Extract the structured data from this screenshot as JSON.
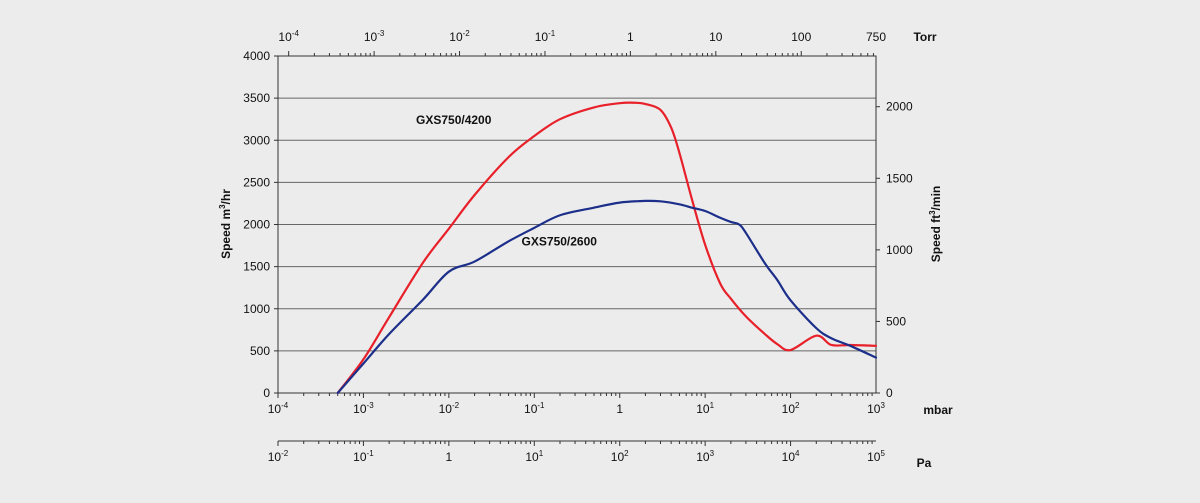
{
  "chart_data": {
    "type": "line",
    "title": "",
    "xscale": "log",
    "xlim": [
      0.0001,
      1000
    ],
    "ylim": [
      0,
      4000
    ],
    "y_ticks": [
      0,
      500,
      1000,
      1500,
      2000,
      2500,
      3000,
      3500,
      4000
    ],
    "y_tick_labels": [
      "0",
      "500",
      "1000",
      "1500",
      "2000",
      "2500",
      "3000",
      "3500",
      "4000"
    ],
    "ylabel": "Speed m",
    "ylabel_sup": "3",
    "ylabel_unit": "/hr",
    "y2_ticks": [
      0,
      500,
      1000,
      1500,
      2000
    ],
    "y2_tick_labels": [
      "0",
      "500",
      "1000",
      "1500",
      "2000"
    ],
    "y2_per_ft3min": 1.699,
    "y2label": "Speed ft",
    "y2label_sup": "3",
    "y2label_unit": "/min",
    "mbar_axis": {
      "unit": "mbar",
      "ticks": [
        {
          "base": "10",
          "exp": "-4"
        },
        {
          "base": "10",
          "exp": "-3"
        },
        {
          "base": "10",
          "exp": "-2"
        },
        {
          "base": "10",
          "exp": "-1"
        },
        {
          "base": "1",
          "exp": ""
        },
        {
          "base": "10",
          "exp": "1"
        },
        {
          "base": "10",
          "exp": "2"
        },
        {
          "base": "10",
          "exp": "3"
        }
      ]
    },
    "torr_axis": {
      "unit": "Torr",
      "ticks": [
        {
          "base": "10",
          "exp": "-4"
        },
        {
          "base": "10",
          "exp": "-3"
        },
        {
          "base": "10",
          "exp": "-2"
        },
        {
          "base": "10",
          "exp": "-1"
        },
        {
          "base": "1",
          "exp": ""
        },
        {
          "base": "10",
          "exp": ""
        },
        {
          "base": "100",
          "exp": ""
        },
        {
          "base": "750",
          "exp": ""
        }
      ],
      "torr_values": [
        0.0001,
        0.001,
        0.01,
        0.1,
        1,
        10,
        100,
        750
      ],
      "mbar_per_torr": 1.3332
    },
    "pa_axis": {
      "unit": "Pa",
      "ticks": [
        {
          "base": "10",
          "exp": "-2"
        },
        {
          "base": "10",
          "exp": "-1"
        },
        {
          "base": "1",
          "exp": ""
        },
        {
          "base": "10",
          "exp": "1"
        },
        {
          "base": "10",
          "exp": "2"
        },
        {
          "base": "10",
          "exp": "3"
        },
        {
          "base": "10",
          "exp": "4"
        },
        {
          "base": "10",
          "exp": "5"
        }
      ]
    },
    "series": [
      {
        "name": "GXS750/4200",
        "color": "#e8202a",
        "x": [
          0.0005,
          0.001,
          0.002,
          0.005,
          0.01,
          0.02,
          0.05,
          0.1,
          0.2,
          0.5,
          1,
          1.5,
          2,
          3,
          4,
          5,
          7,
          10,
          15,
          20,
          30,
          50,
          70,
          100,
          200,
          300,
          500,
          1000
        ],
        "y": [
          0,
          400,
          900,
          1550,
          1950,
          2350,
          2800,
          3050,
          3250,
          3390,
          3440,
          3445,
          3430,
          3360,
          3150,
          2850,
          2300,
          1760,
          1300,
          1120,
          910,
          700,
          580,
          510,
          680,
          570,
          570,
          560
        ]
      },
      {
        "name": "GXS750/2600",
        "color": "#1c2f8a",
        "x": [
          0.0005,
          0.001,
          0.002,
          0.005,
          0.01,
          0.02,
          0.05,
          0.1,
          0.2,
          0.5,
          1,
          2,
          3,
          5,
          7,
          10,
          15,
          20,
          25,
          30,
          50,
          70,
          100,
          200,
          300,
          500,
          1000
        ],
        "y": [
          0,
          350,
          700,
          1110,
          1440,
          1560,
          1800,
          1960,
          2110,
          2200,
          2260,
          2280,
          2275,
          2240,
          2200,
          2160,
          2080,
          2030,
          2000,
          1900,
          1540,
          1340,
          1100,
          770,
          650,
          560,
          420
        ]
      }
    ],
    "annotations": [
      {
        "text": "GXS750/4200",
        "x": 0.0114,
        "y": 3190
      },
      {
        "text": "GXS750/2600",
        "x": 0.196,
        "y": 1750
      }
    ]
  }
}
